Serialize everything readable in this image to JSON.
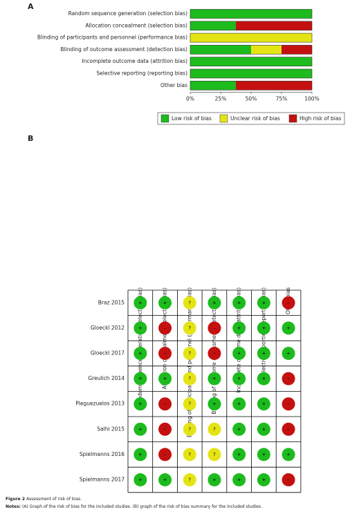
{
  "panel_a": "A",
  "panel_b": "B",
  "chart_data": {
    "type": "stacked-barh",
    "categories": [
      "Random sequence generation (selection bias)",
      "Allocation concealment (selection bias)",
      "Blinding of participants and personnel (performance bias)",
      "Blinding of outcome assessment (detection bias)",
      "Incomplete outcome data (attrition bias)",
      "Selective reporting (reporting bias)",
      "Other bias"
    ],
    "series": [
      {
        "name": "Low risk of bias",
        "color": "#1dbb1d",
        "values": [
          100,
          37.5,
          0,
          50,
          100,
          100,
          37.5
        ]
      },
      {
        "name": "Unclear risk of bias",
        "color": "#e4e414",
        "values": [
          0,
          0,
          100,
          25,
          0,
          0,
          0
        ]
      },
      {
        "name": "High risk of bias",
        "color": "#c51010",
        "values": [
          0,
          62.5,
          0,
          25,
          0,
          0,
          62.5
        ]
      }
    ],
    "xlim": [
      0,
      100
    ],
    "xticks": [
      {
        "value": 0,
        "label": "0%"
      },
      {
        "value": 25,
        "label": "25%"
      },
      {
        "value": 50,
        "label": "50%"
      },
      {
        "value": 75,
        "label": "75%"
      },
      {
        "value": 100,
        "label": "100%"
      }
    ],
    "legend": "bottom-right"
  },
  "summary": {
    "domains": [
      "Random sequence generation (selection bias)",
      "Allocation concealment (selection bias)",
      "Blinding of participants and personnel (performance bias)",
      "Blinding of outcome assessment (detection bias)",
      "Incomplete outcome data (attrition bias)",
      "Selective reporting (reporting bias)",
      "Other bias"
    ],
    "studies": [
      "Braz 2015",
      "Gloeckl 2012",
      "Gloeckl 2017",
      "Greulich 2014",
      "Pleguezuelos 2013",
      "Salhi 2015",
      "Spielmanns 2016",
      "Spielmanns 2017"
    ],
    "ratings": [
      [
        "+",
        "+",
        "?",
        "+",
        "+",
        "+",
        "–"
      ],
      [
        "+",
        "–",
        "?",
        "–",
        "+",
        "+",
        "+"
      ],
      [
        "+",
        "–",
        "?",
        "–",
        "+",
        "+",
        "+"
      ],
      [
        "+",
        "+",
        "?",
        "+",
        "+",
        "+",
        "–"
      ],
      [
        "+",
        "–",
        "?",
        "+",
        "+",
        "+",
        "–"
      ],
      [
        "+",
        "–",
        "?",
        "?",
        "+",
        "+",
        "–"
      ],
      [
        "+",
        "–",
        "?",
        "?",
        "+",
        "+",
        "+"
      ],
      [
        "+",
        "+",
        "?",
        "+",
        "+",
        "+",
        "–"
      ]
    ],
    "colors": {
      "+": "#1dbb1d",
      "?": "#e4e414",
      "–": "#c51010"
    }
  },
  "caption": {
    "label": "Figure 2",
    "text": "Assessment of risk of bias."
  },
  "notes": {
    "label": "Notes:",
    "text": "(A) Graph of the risk of bias for the included studies. (B) graph of the risk of bias summary for the included studies."
  }
}
